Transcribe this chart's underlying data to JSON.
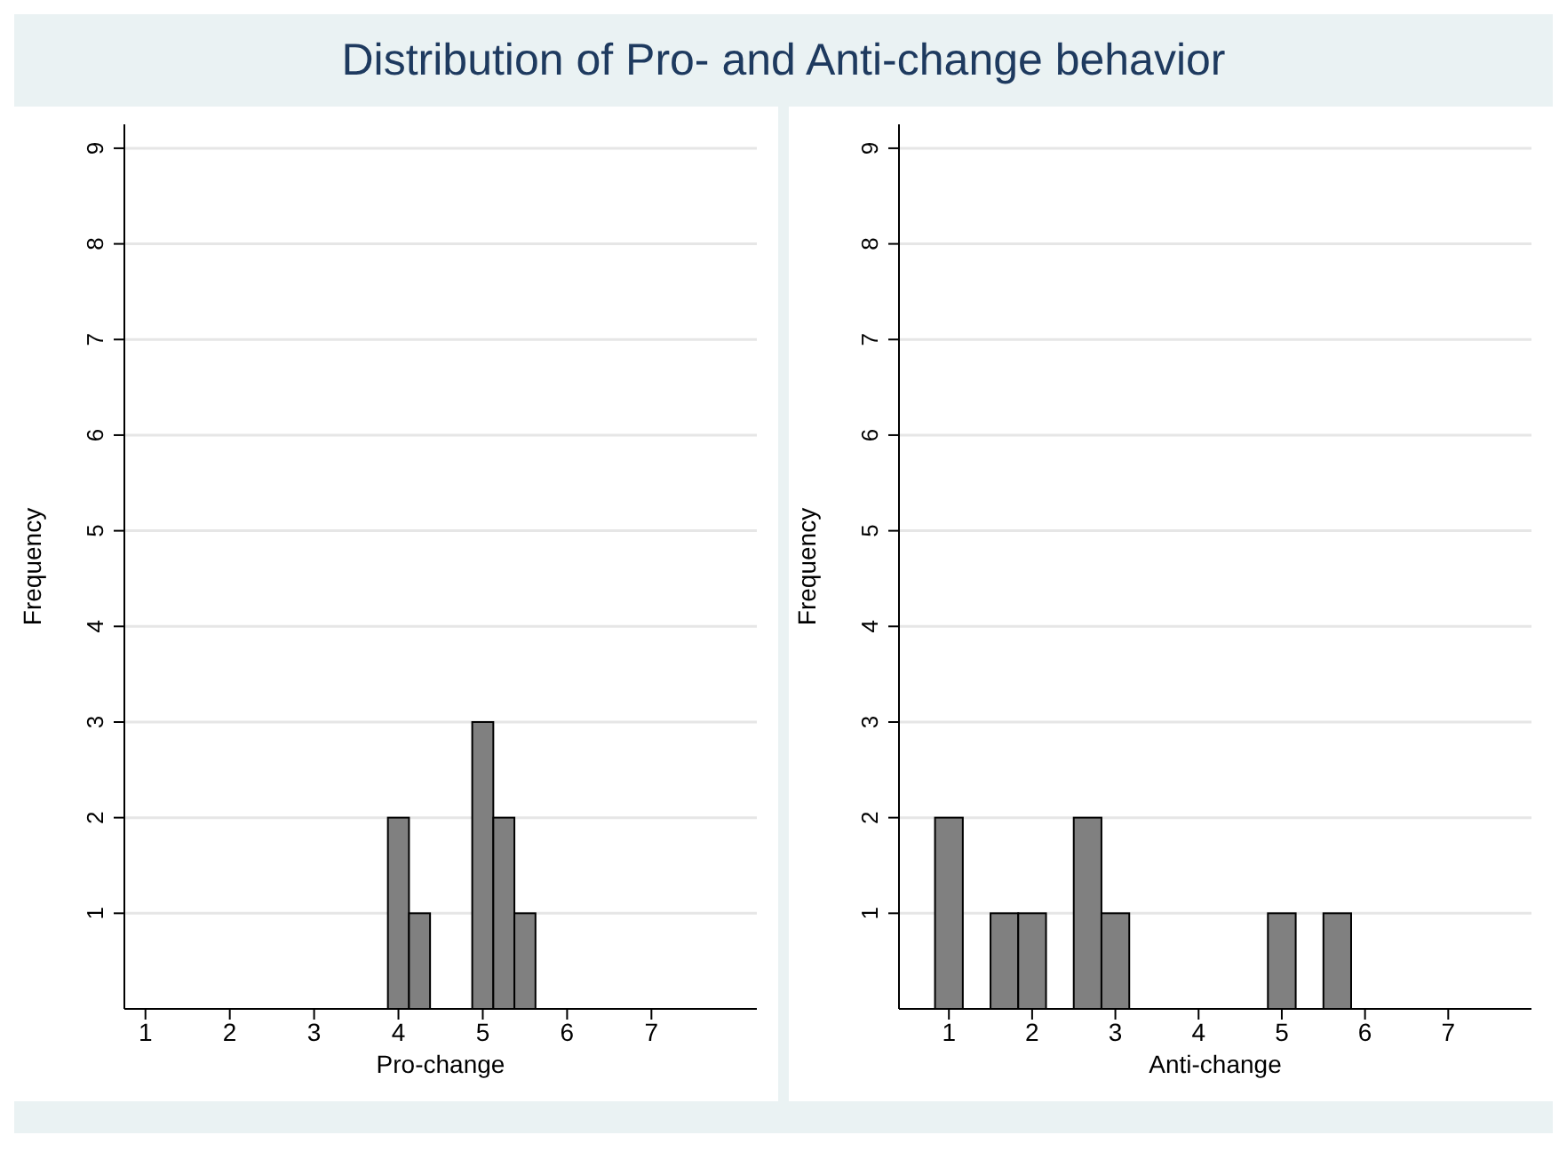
{
  "chart_data": [
    {
      "type": "histogram",
      "title": "Distribution of Pro- and Anti-change behavior",
      "xlabel": "Pro-change",
      "ylabel": "Frequency",
      "color": "#808080",
      "bins": [
        3.875,
        4.125,
        4.375,
        4.625,
        4.875,
        5.125,
        5.375,
        5.625
      ],
      "values": [
        2,
        1,
        0,
        0,
        3,
        2,
        1
      ],
      "xlim": [
        0.75,
        8.25
      ],
      "xticks": [
        1,
        2,
        3,
        4,
        5,
        6,
        7
      ],
      "ylim": [
        0,
        9.25
      ],
      "yticks": [
        1,
        2,
        3,
        4,
        5,
        6,
        7,
        8,
        9
      ],
      "grid": "y"
    },
    {
      "type": "histogram",
      "xlabel": "Anti-change",
      "ylabel": "Frequency",
      "color": "#808080",
      "bins": [
        0.833,
        1.167,
        1.5,
        1.833,
        2.167,
        2.5,
        2.833,
        3.167,
        3.5,
        3.833,
        4.167,
        4.5,
        4.833,
        5.167,
        5.5,
        5.833
      ],
      "values": [
        2,
        0,
        1,
        1,
        0,
        2,
        1,
        0,
        0,
        0,
        0,
        0,
        1,
        0,
        1
      ],
      "xlim": [
        0.4,
        8
      ],
      "xticks": [
        1,
        2,
        3,
        4,
        5,
        6,
        7
      ],
      "ylim": [
        0,
        9.25
      ],
      "yticks": [
        1,
        2,
        3,
        4,
        5,
        6,
        7,
        8,
        9
      ],
      "grid": "y"
    }
  ]
}
